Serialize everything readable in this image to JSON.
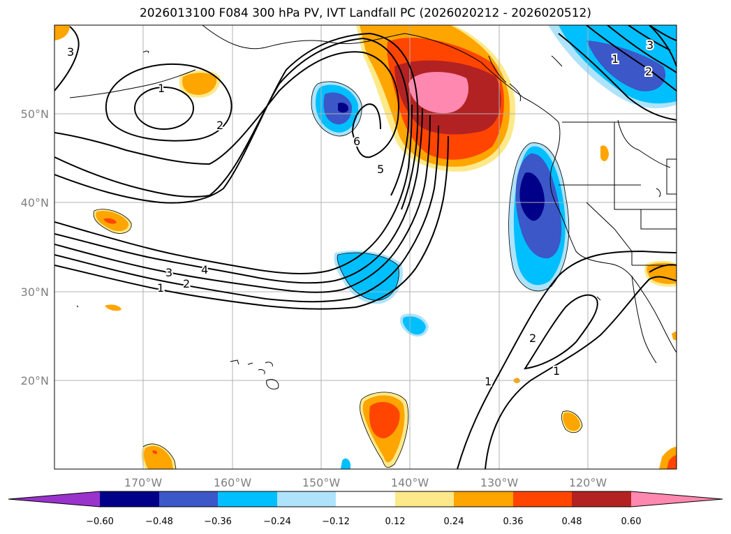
{
  "title": "2026013100 F084 300 hPa PV, IVT Landfall PC (2026020212 - 2026020512)",
  "map": {
    "lat_labels": [
      "50°N",
      "40°N",
      "30°N",
      "20°N"
    ],
    "lon_labels": [
      "170°W",
      "160°W",
      "150°W",
      "140°W",
      "130°W",
      "120°W"
    ],
    "extent": {
      "lon": [
        -180,
        -110
      ],
      "lat": [
        10,
        60
      ]
    }
  },
  "contour_labels": [
    "3",
    "1",
    "2",
    "6",
    "5",
    "1",
    "2",
    "3",
    "4",
    "3",
    "2",
    "1",
    "2",
    "1",
    "1"
  ],
  "colorbar": {
    "ticks": [
      "−0.60",
      "−0.48",
      "−0.36",
      "−0.24",
      "−0.12",
      "0.12",
      "0.24",
      "0.36",
      "0.48",
      "0.60"
    ],
    "colors": [
      "#9933cc",
      "#000088",
      "#3b57c8",
      "#00bfff",
      "#aee3fb",
      "#ffffff",
      "#fde98a",
      "#ffa500",
      "#ff4500",
      "#b22222",
      "#ff88b0"
    ]
  }
}
